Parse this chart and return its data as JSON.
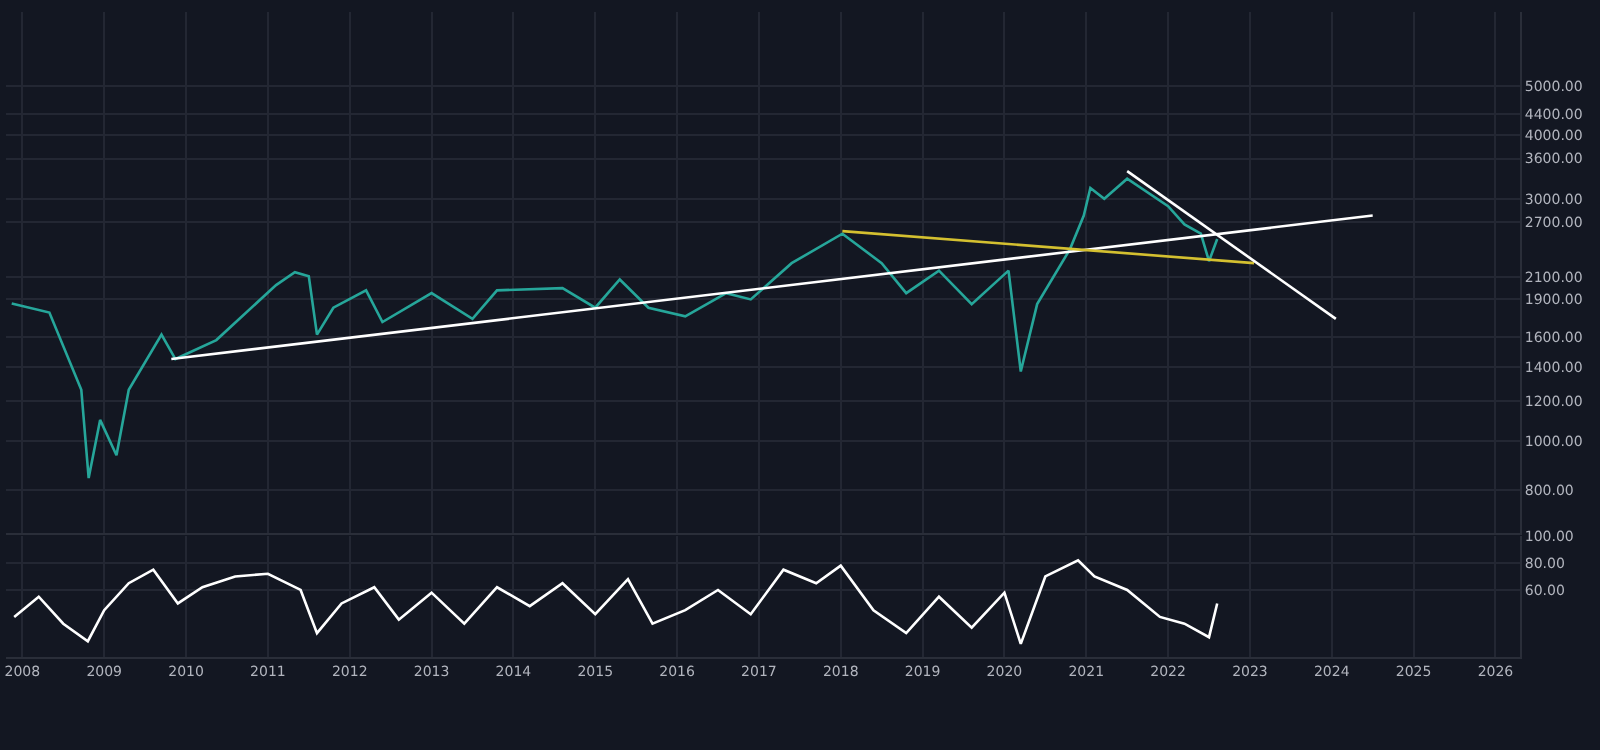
{
  "chart_data": [
    {
      "type": "line",
      "log": "y",
      "grid": true,
      "tick_labels": "y",
      "xlim": [
        2007.8,
        2026.3
      ],
      "ylim": [
        660,
        7000
      ],
      "xticks": [
        2008,
        2009,
        2010,
        2011,
        2012,
        2013,
        2014,
        2015,
        2016,
        2017,
        2018,
        2019,
        2020,
        2021,
        2022,
        2023,
        2024,
        2025,
        2026
      ],
      "yticks": [
        {
          "value": 800,
          "label": "800.00"
        },
        {
          "value": 1000,
          "label": "1000.00"
        },
        {
          "value": 1200,
          "label": "1200.00"
        },
        {
          "value": 1400,
          "label": "1400.00"
        },
        {
          "value": 1600,
          "label": "1600.00"
        },
        {
          "value": 1900,
          "label": "1900.00"
        },
        {
          "value": 2100,
          "label": "2100.00"
        },
        {
          "value": 2700,
          "label": "2700.00"
        },
        {
          "value": 3000,
          "label": "3000.00"
        },
        {
          "value": 3600,
          "label": "3600.00"
        },
        {
          "value": 4000,
          "label": "4000.00"
        },
        {
          "value": 4400,
          "label": "4400.00"
        },
        {
          "value": 5000,
          "label": "5000.00"
        }
      ],
      "series": [
        {
          "color": "#26a69a",
          "x": [
            2007.87,
            2008.33,
            2008.72,
            2008.81,
            2008.95,
            2009.15,
            2009.3,
            2009.7,
            2009.87,
            2010.37,
            2011.1,
            2011.33,
            2011.5,
            2011.6,
            2011.8,
            2012.2,
            2012.4,
            2013.0,
            2013.5,
            2013.8,
            2014.6,
            2015.0,
            2015.3,
            2015.65,
            2016.1,
            2016.6,
            2016.9,
            2017.4,
            2018.02,
            2018.5,
            2018.8,
            2019.2,
            2019.6,
            2020.05,
            2020.2,
            2020.4,
            2020.8,
            2020.97,
            2021.05,
            2021.22,
            2021.5,
            2022.0,
            2022.2,
            2022.4,
            2022.5,
            2022.6
          ],
          "values": [
            1866,
            1790,
            1261,
            845,
            1100,
            937,
            1261,
            1620,
            1450,
            1580,
            2028,
            2150,
            2110,
            1620,
            1830,
            1980,
            1715,
            1955,
            1740,
            1980,
            2000,
            1830,
            2080,
            1830,
            1760,
            1955,
            1900,
            2240,
            2560,
            2240,
            1955,
            2165,
            1860,
            2165,
            1370,
            1860,
            2385,
            2780,
            3150,
            3000,
            3285,
            2900,
            2670,
            2560,
            2260,
            2500
          ]
        },
        {
          "type": "line",
          "color": "#ffffff",
          "x": [
            2009.82,
            2024.5
          ],
          "values": [
            1450,
            2780
          ]
        },
        {
          "type": "line",
          "color": "#d4c030",
          "x": [
            2018.02,
            2023.05
          ],
          "values": [
            2590,
            2240
          ]
        },
        {
          "type": "line",
          "color": "#ffffff",
          "x": [
            2021.5,
            2024.05
          ],
          "values": [
            3400,
            1740
          ]
        }
      ]
    },
    {
      "type": "line",
      "grid": true,
      "xlim": [
        2007.8,
        2026.3
      ],
      "ylim": [
        10,
        100
      ],
      "xticks": [
        2008,
        2009,
        2010,
        2011,
        2012,
        2013,
        2014,
        2015,
        2016,
        2017,
        2018,
        2019,
        2020,
        2021,
        2022,
        2023,
        2024,
        2025,
        2026
      ],
      "yticks": [
        {
          "value": 60,
          "label": "60.00"
        },
        {
          "value": 80,
          "label": "80.00"
        },
        {
          "value": 100,
          "label": "100.00"
        }
      ],
      "series": [
        {
          "color": "#ffffff",
          "x": [
            2007.9,
            2008.2,
            2008.5,
            2008.8,
            2009.0,
            2009.3,
            2009.6,
            2009.9,
            2010.2,
            2010.6,
            2011.0,
            2011.4,
            2011.6,
            2011.9,
            2012.3,
            2012.6,
            2013.0,
            2013.4,
            2013.8,
            2014.2,
            2014.6,
            2015.0,
            2015.4,
            2015.7,
            2016.1,
            2016.5,
            2016.9,
            2017.3,
            2017.7,
            2018.0,
            2018.4,
            2018.8,
            2019.2,
            2019.6,
            2020.0,
            2020.2,
            2020.5,
            2020.9,
            2021.1,
            2021.5,
            2021.9,
            2022.2,
            2022.5,
            2022.6
          ],
          "values": [
            40,
            55,
            35,
            22,
            45,
            65,
            75,
            50,
            62,
            70,
            72,
            60,
            28,
            50,
            62,
            38,
            58,
            35,
            62,
            48,
            65,
            42,
            68,
            35,
            45,
            60,
            42,
            75,
            65,
            78,
            45,
            28,
            55,
            32,
            58,
            20,
            70,
            82,
            70,
            60,
            40,
            35,
            25,
            50
          ]
        }
      ]
    }
  ]
}
